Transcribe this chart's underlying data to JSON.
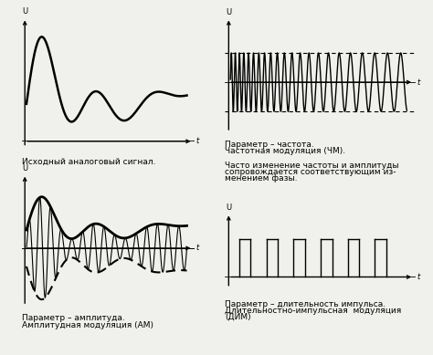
{
  "bg_color": "#f0f0ec",
  "labels": {
    "top_left": "Исходный аналоговый сигнал.",
    "top_right_line1": "Параметр – частота.",
    "top_right_line2": "Частотная модуляция (ЧМ).",
    "mid_right_line1": "Часто изменение частоты и амплитуды",
    "mid_right_line2": "сопровождается соответствующим из-",
    "mid_right_line3": "менением фазы.",
    "bot_left_line1": "Параметр – амплитуда.",
    "bot_left_line2": "Амплитудная модуляция (АМ)",
    "bot_right_line1": "Параметр – длительность импульса.",
    "bot_right_line2": "Длительностно-импульсная  модуляция",
    "bot_right_line3": "(ДИМ)"
  }
}
